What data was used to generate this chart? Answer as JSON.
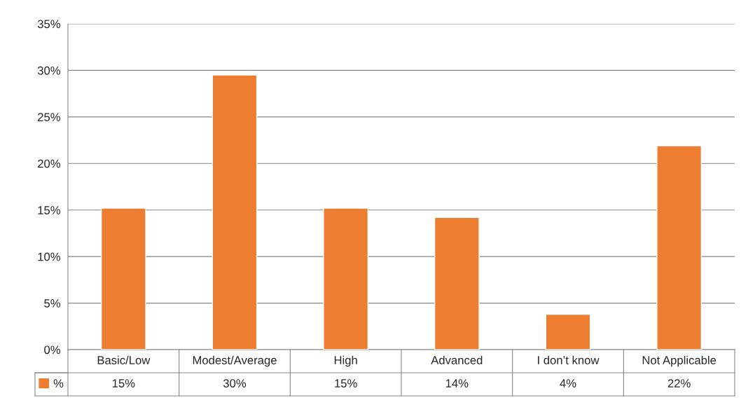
{
  "chart_data": {
    "type": "bar",
    "categories": [
      "Basic/Low",
      "Modest/Average",
      "High",
      "Advanced",
      "I don’t know",
      "Not Applicable"
    ],
    "series": [
      {
        "name": "%",
        "color": "#ed7d31",
        "values": [
          15.2,
          29.5,
          15.2,
          14.2,
          3.8,
          21.9
        ],
        "value_labels": [
          "15%",
          "30%",
          "15%",
          "14%",
          "4%",
          "22%"
        ]
      }
    ],
    "ylim": [
      0,
      35
    ],
    "yticks": [
      {
        "value": 0,
        "label": "0%"
      },
      {
        "value": 5,
        "label": "5%"
      },
      {
        "value": 10,
        "label": "10%"
      },
      {
        "value": 15,
        "label": "15%"
      },
      {
        "value": 20,
        "label": "20%"
      },
      {
        "value": 25,
        "label": "25%"
      },
      {
        "value": 30,
        "label": "30%"
      },
      {
        "value": 35,
        "label": "35%"
      }
    ],
    "grid": "y",
    "legend": "bottom left"
  }
}
